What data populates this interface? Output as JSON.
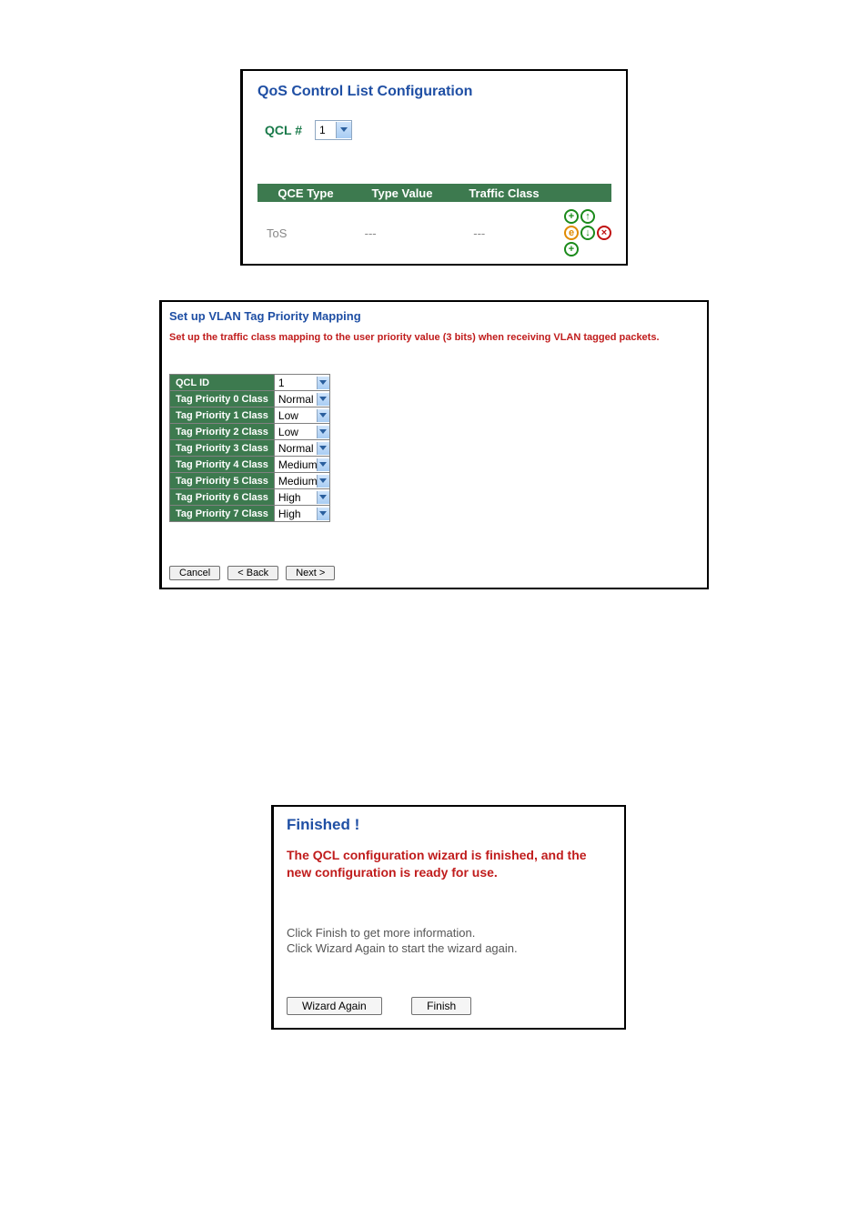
{
  "panel1": {
    "title": "QoS Control List Configuration",
    "qcl_label": "QCL #",
    "qcl_value": "1",
    "table": {
      "headers": {
        "c1": "QCE Type",
        "c2": "Type Value",
        "c3": "Traffic Class"
      },
      "row": {
        "c1": "ToS",
        "c2": "---",
        "c3": "---"
      },
      "header_bg": "#3d7a4f",
      "header_fg": "#ffffff"
    },
    "icons": {
      "add": "+",
      "up": "↑",
      "edit": "e",
      "down": "↓",
      "del": "×"
    }
  },
  "panel2": {
    "title": "Set up VLAN Tag Priority Mapping",
    "subtitle": "Set up the traffic class mapping to the user priority value (3 bits) when receiving VLAN tagged packets.",
    "rows": [
      {
        "label": "QCL ID",
        "value": "1"
      },
      {
        "label": "Tag Priority 0 Class",
        "value": "Normal"
      },
      {
        "label": "Tag Priority 1 Class",
        "value": "Low"
      },
      {
        "label": "Tag Priority 2 Class",
        "value": "Low"
      },
      {
        "label": "Tag Priority 3 Class",
        "value": "Normal"
      },
      {
        "label": "Tag Priority 4 Class",
        "value": "Medium"
      },
      {
        "label": "Tag Priority 5 Class",
        "value": "Medium"
      },
      {
        "label": "Tag Priority 6 Class",
        "value": "High"
      },
      {
        "label": "Tag Priority 7 Class",
        "value": "High"
      }
    ],
    "buttons": {
      "cancel": "Cancel",
      "back": "< Back",
      "next": "Next >"
    },
    "colors": {
      "title": "#1f4fa4",
      "subtitle": "#c01c1c",
      "row_hdr_bg": "#3d7a4f"
    }
  },
  "panel3": {
    "title": "Finished !",
    "subtitle": "The QCL configuration wizard is finished, and the new configuration is ready for use.",
    "info1": "Click Finish to get more information.",
    "info2": "Click Wizard Again to start the wizard again.",
    "buttons": {
      "again": "Wizard Again",
      "finish": "Finish"
    }
  }
}
